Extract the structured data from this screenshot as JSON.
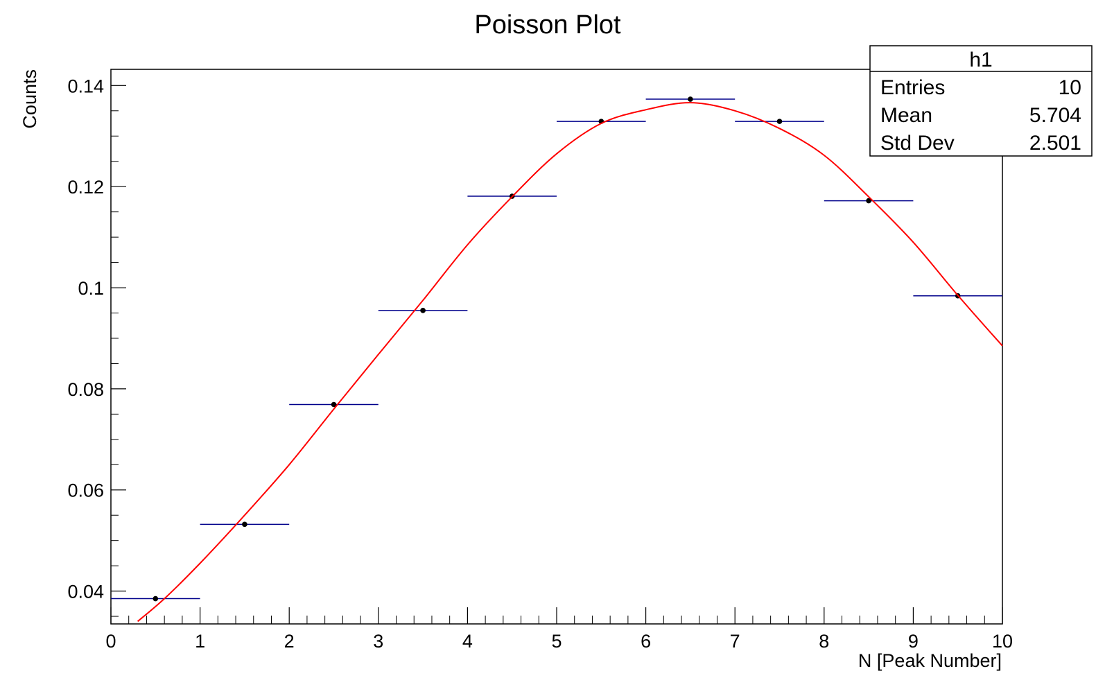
{
  "chart_data": {
    "type": "scatter",
    "title": "Poisson Plot",
    "xlabel": "N [Peak Number]",
    "ylabel": "Counts",
    "xlim": [
      0,
      10
    ],
    "ylim": [
      0.0335,
      0.1432
    ],
    "x_ticks": [
      0,
      1,
      2,
      3,
      4,
      5,
      6,
      7,
      8,
      9,
      10
    ],
    "x_tick_labels": [
      "0",
      "1",
      "2",
      "3",
      "4",
      "5",
      "6",
      "7",
      "8",
      "9",
      "10"
    ],
    "y_ticks": [
      0.04,
      0.06,
      0.08,
      0.1,
      0.12,
      0.14
    ],
    "y_tick_labels": [
      "0.04",
      "0.06",
      "0.08",
      "0.1",
      "0.12",
      "0.14"
    ],
    "grid": false,
    "histogram": {
      "bin_edges": [
        0,
        1,
        2,
        3,
        4,
        5,
        6,
        7,
        8,
        9,
        10
      ],
      "x": [
        0.5,
        1.5,
        2.5,
        3.5,
        4.5,
        5.5,
        6.5,
        7.5,
        8.5,
        9.5
      ],
      "values": [
        0.0385,
        0.0532,
        0.0769,
        0.0955,
        0.1181,
        0.1329,
        0.1373,
        0.1329,
        0.1172,
        0.0984
      ],
      "marker_color": "#000000",
      "bar_color": "#00008b"
    },
    "fit": {
      "color": "#ff0000",
      "x": [
        0.3,
        0.6,
        1.0,
        1.5,
        2.0,
        2.5,
        3.0,
        3.5,
        4.0,
        4.5,
        5.0,
        5.5,
        6.0,
        6.5,
        7.0,
        7.5,
        8.0,
        8.5,
        9.0,
        9.5,
        10.0
      ],
      "y": [
        0.034,
        0.0385,
        0.0455,
        0.055,
        0.065,
        0.076,
        0.0868,
        0.0975,
        0.1085,
        0.118,
        0.1265,
        0.1325,
        0.1352,
        0.1366,
        0.135,
        0.1315,
        0.1262,
        0.118,
        0.109,
        0.0985,
        0.0885
      ]
    },
    "stats_box": {
      "title": "h1",
      "rows": [
        {
          "label": "Entries",
          "value": "10"
        },
        {
          "label": "Mean",
          "value": "5.704"
        },
        {
          "label": "Std Dev",
          "value": "2.501"
        }
      ]
    }
  }
}
